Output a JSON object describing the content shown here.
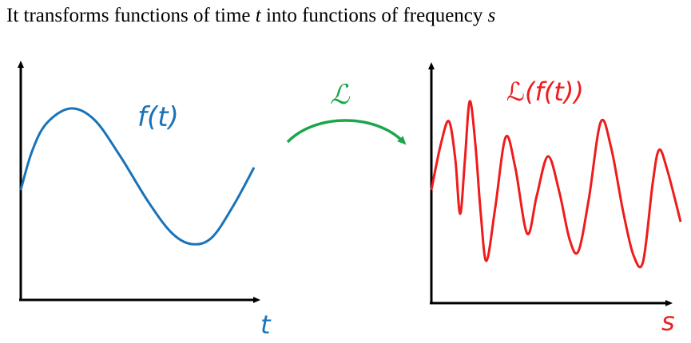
{
  "heading": {
    "before_t": "It transforms functions of time ",
    "t": "t",
    "middle": " into functions of frequency ",
    "s": "s"
  },
  "left_plot": {
    "curve_label": "f(t)",
    "axis_label": "t",
    "color": "#1a73b8"
  },
  "transform": {
    "symbol": "ℒ",
    "color": "#1aa64a"
  },
  "right_plot": {
    "curve_label": "ℒ(f(t))",
    "axis_label": "s",
    "color": "#ee1c1c"
  }
}
